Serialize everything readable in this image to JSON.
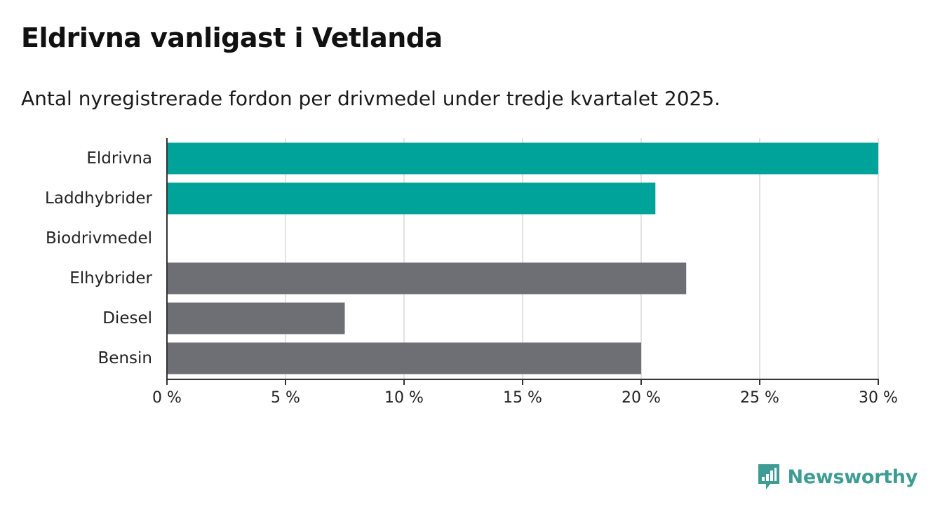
{
  "header": {
    "title": "Eldrivna vanligast i Vetlanda",
    "subtitle": "Antal nyregistrerade fordon per drivmedel under tredje kvartalet 2025."
  },
  "chart_data": {
    "type": "bar",
    "orientation": "horizontal",
    "categories": [
      "Eldrivna",
      "Laddhybrider",
      "Biodrivmedel",
      "Elhybrider",
      "Diesel",
      "Bensin"
    ],
    "values": [
      30,
      20.6,
      0,
      21.9,
      7.5,
      20
    ],
    "value_unit": "%",
    "bar_colors": [
      "#00a39a",
      "#00a39a",
      "#6e6e75",
      "#6e6e75",
      "#6e6e75",
      "#6e6e75"
    ],
    "xlim": [
      0,
      30
    ],
    "xticks": [
      0,
      5,
      10,
      15,
      20,
      25,
      30
    ],
    "xtick_labels": [
      "0 %",
      "5 %",
      "10 %",
      "15 %",
      "20 %",
      "25 %",
      "30 %"
    ],
    "grid": true,
    "xlabel": "",
    "ylabel": ""
  },
  "branding": {
    "name": "Newsworthy",
    "color": "#3f9c94"
  }
}
